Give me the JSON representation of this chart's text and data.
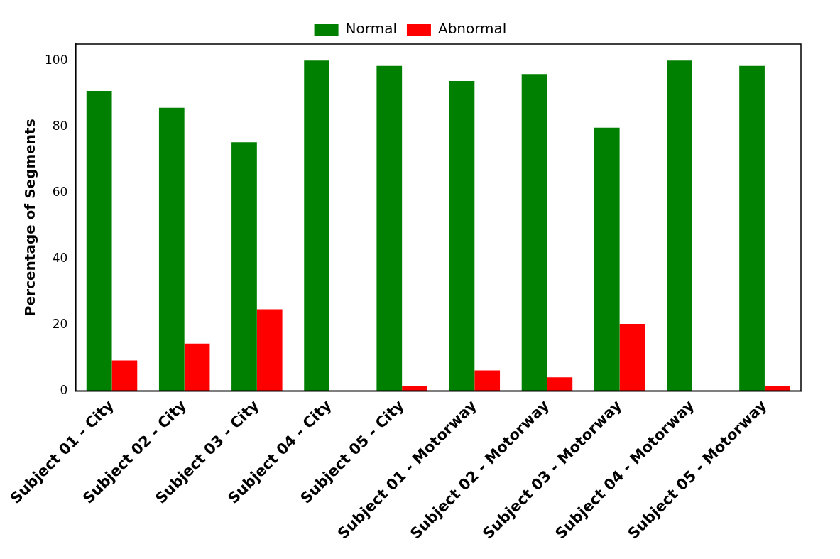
{
  "chart_data": {
    "type": "bar",
    "ylabel": "Percentage of Segments",
    "categories": [
      "Subject 01 - City",
      "Subject 02 - City",
      "Subject 03 - City",
      "Subject 04 - City",
      "Subject 05 - City",
      "Subject 01 - Motorway",
      "Subject 02 - Motorway",
      "Subject 03 - Motorway",
      "Subject 04 - Motorway",
      "Subject 05 - Motorway"
    ],
    "series": [
      {
        "name": "Normal",
        "color": "#008000",
        "values": [
          90.8,
          85.7,
          75.3,
          100,
          98.4,
          93.8,
          95.9,
          79.7,
          100,
          98.4
        ]
      },
      {
        "name": "Abnormal",
        "color": "#ff0000",
        "values": [
          9.2,
          14.3,
          24.7,
          0,
          1.6,
          6.2,
          4.1,
          20.3,
          0,
          1.6
        ]
      }
    ],
    "ylim": [
      0,
      105
    ],
    "yticks": [
      0,
      20,
      40,
      60,
      80,
      100
    ],
    "grid": false,
    "legend": "top"
  }
}
